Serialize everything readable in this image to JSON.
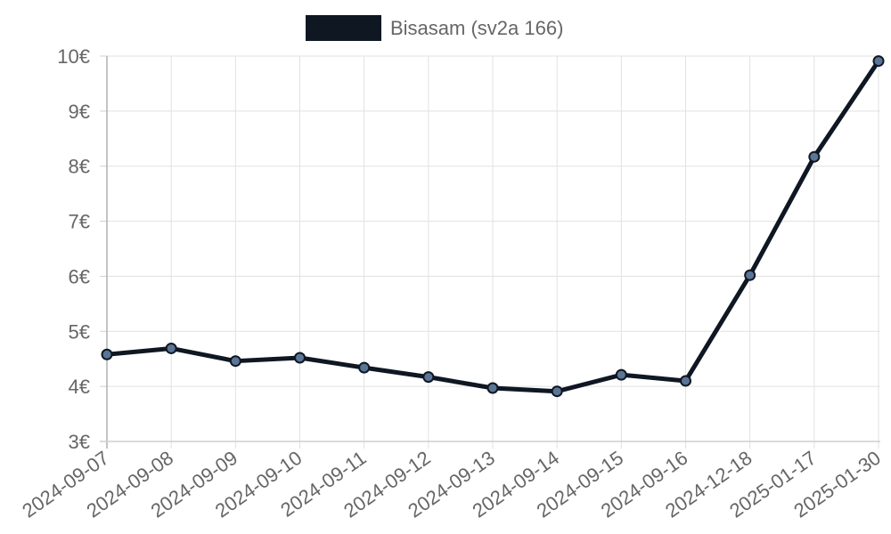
{
  "chart_data": {
    "type": "line",
    "x": [
      "2024-09-07",
      "2024-09-08",
      "2024-09-09",
      "2024-09-10",
      "2024-09-11",
      "2024-09-12",
      "2024-09-13",
      "2024-09-14",
      "2024-09-15",
      "2024-09-16",
      "2024-12-18",
      "2025-01-17",
      "2025-01-30"
    ],
    "series": [
      {
        "name": "Bisasam (sv2a 166)",
        "values": [
          4.58,
          4.69,
          4.46,
          4.52,
          4.34,
          4.17,
          3.97,
          3.91,
          4.21,
          4.1,
          6.02,
          8.17,
          9.91
        ],
        "color": "#0f1723",
        "point_color": "#5b7596"
      }
    ],
    "y_ticks": [
      "3€",
      "4€",
      "5€",
      "6€",
      "7€",
      "8€",
      "9€",
      "10€"
    ],
    "ylim": [
      3,
      10
    ],
    "y_unit": "€",
    "grid": true,
    "legend_position": "top-center"
  }
}
